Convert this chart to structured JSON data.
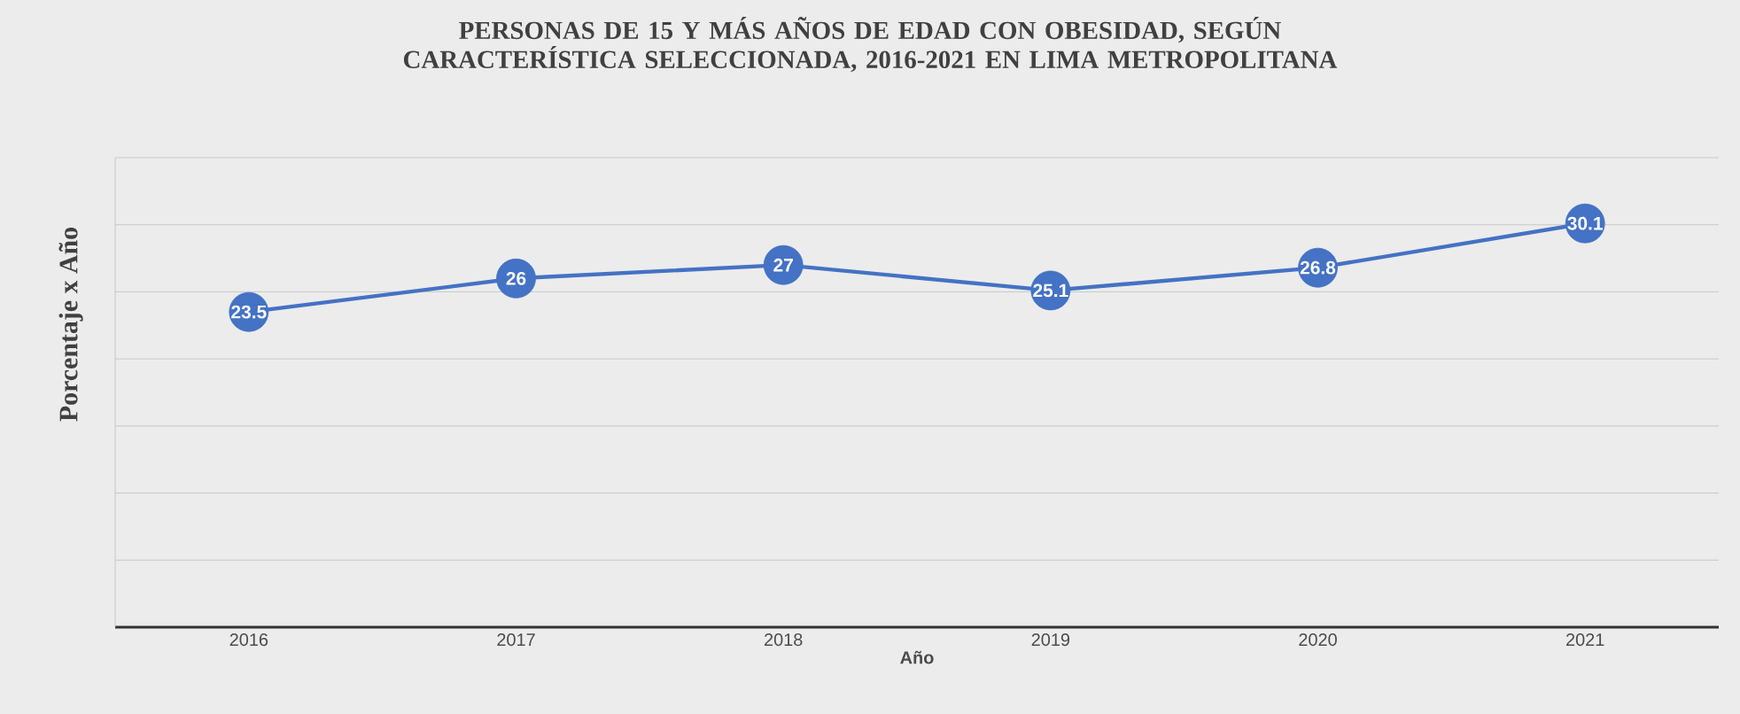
{
  "chart_data": {
    "type": "line",
    "title": "PERSONAS DE 15 Y MÁS AÑOS DE EDAD CON OBESIDAD, SEGÚN CARACTERÍSTICA SELECCIONADA, 2016-2021 EN LIMA METROPOLITANA",
    "xlabel": "Año",
    "ylabel": "Porcentaje x Año",
    "categories": [
      "2016",
      "2017",
      "2018",
      "2019",
      "2020",
      "2021"
    ],
    "values": [
      23.5,
      26,
      27,
      25.1,
      26.8,
      30.1
    ],
    "color": "#4472c4",
    "marker": "circle",
    "line_style": "solid",
    "data_labels": true,
    "ylim": [
      0,
      35
    ],
    "yticks": [
      {
        "value": 0,
        "label": null
      },
      {
        "value": 5,
        "label": null
      },
      {
        "value": 10,
        "label": null
      },
      {
        "value": 15,
        "label": null
      },
      {
        "value": 20,
        "label": null
      },
      {
        "value": 25,
        "label": null
      },
      {
        "value": 30,
        "label": null
      },
      {
        "value": 35,
        "label": null
      }
    ],
    "grid": "y",
    "tick_labels": "x"
  }
}
